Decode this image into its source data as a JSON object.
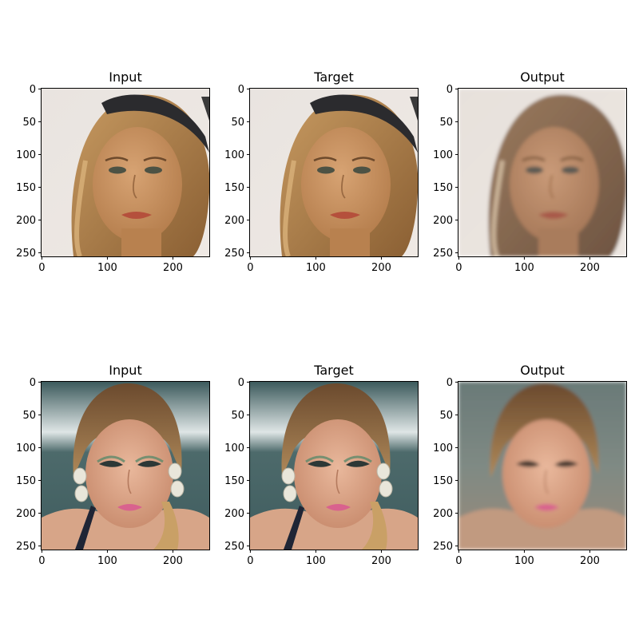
{
  "figure": {
    "panels": [
      {
        "title": "Input",
        "row": 0,
        "col": 0,
        "image": "face-1-input",
        "tone": "warm"
      },
      {
        "title": "Target",
        "row": 0,
        "col": 1,
        "image": "face-1-target",
        "tone": "warm"
      },
      {
        "title": "Output",
        "row": 0,
        "col": 2,
        "image": "face-1-output",
        "tone": "muted"
      },
      {
        "title": "Input",
        "row": 1,
        "col": 0,
        "image": "face-2-input",
        "tone": "teal"
      },
      {
        "title": "Target",
        "row": 1,
        "col": 1,
        "image": "face-2-target",
        "tone": "teal"
      },
      {
        "title": "Output",
        "row": 1,
        "col": 2,
        "image": "face-2-output",
        "tone": "blurred"
      }
    ],
    "x_ticks": [
      "0",
      "100",
      "200"
    ],
    "y_ticks": [
      "0",
      "50",
      "100",
      "150",
      "200",
      "250"
    ],
    "colors": {
      "axis": "#000000",
      "background": "#ffffff"
    }
  }
}
